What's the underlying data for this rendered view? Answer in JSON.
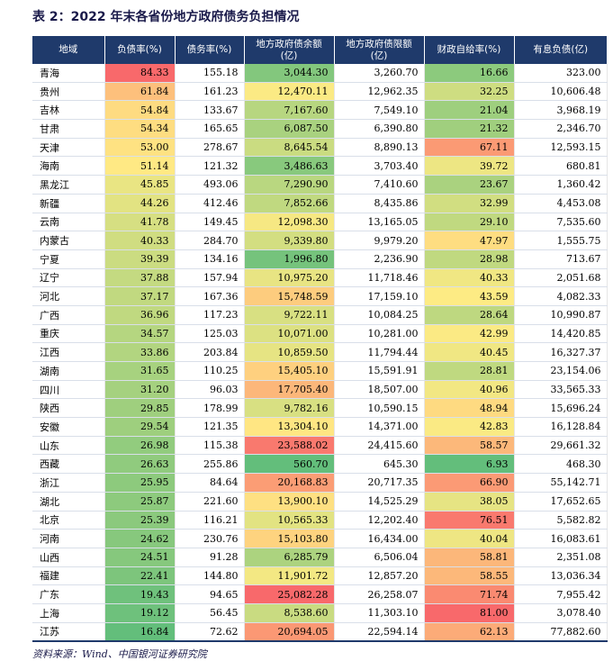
{
  "title": "表 2：2022 年末各省份地方政府债务负担情况",
  "source": "资料来源：Wind、中国银河证券研究院",
  "columns": [
    "地域",
    "负债率(%)",
    "债务率(%)",
    "地方政府债余额\n(亿)",
    "地方政府债限额\n(亿)",
    "财政自给率(%)",
    "有息负债(亿)"
  ],
  "rows": [
    {
      "region": "青海",
      "fzl": "84.33",
      "zwl": "155.18",
      "ye": "3,044.30",
      "xe": "3,260.70",
      "zjl": "16.66",
      "yx": "323.00"
    },
    {
      "region": "贵州",
      "fzl": "61.84",
      "zwl": "161.23",
      "ye": "12,470.11",
      "xe": "12,962.35",
      "zjl": "32.25",
      "yx": "10,606.48"
    },
    {
      "region": "吉林",
      "fzl": "54.84",
      "zwl": "133.67",
      "ye": "7,167.60",
      "xe": "7,549.10",
      "zjl": "21.04",
      "yx": "3,968.19"
    },
    {
      "region": "甘肃",
      "fzl": "54.34",
      "zwl": "165.65",
      "ye": "6,087.50",
      "xe": "6,390.80",
      "zjl": "21.32",
      "yx": "2,346.70"
    },
    {
      "region": "天津",
      "fzl": "53.00",
      "zwl": "278.67",
      "ye": "8,645.54",
      "xe": "8,890.13",
      "zjl": "67.11",
      "yx": "12,593.15"
    },
    {
      "region": "海南",
      "fzl": "51.14",
      "zwl": "121.32",
      "ye": "3,486.63",
      "xe": "3,703.40",
      "zjl": "39.72",
      "yx": "680.81"
    },
    {
      "region": "黑龙江",
      "fzl": "45.85",
      "zwl": "493.06",
      "ye": "7,290.90",
      "xe": "7,410.60",
      "zjl": "23.67",
      "yx": "1,360.42"
    },
    {
      "region": "新疆",
      "fzl": "44.26",
      "zwl": "412.46",
      "ye": "7,852.66",
      "xe": "8,435.86",
      "zjl": "32.99",
      "yx": "4,453.08"
    },
    {
      "region": "云南",
      "fzl": "41.78",
      "zwl": "149.45",
      "ye": "12,098.30",
      "xe": "13,165.05",
      "zjl": "29.10",
      "yx": "7,535.60"
    },
    {
      "region": "内蒙古",
      "fzl": "40.33",
      "zwl": "284.70",
      "ye": "9,339.80",
      "xe": "9,979.20",
      "zjl": "47.97",
      "yx": "1,555.75"
    },
    {
      "region": "宁夏",
      "fzl": "39.39",
      "zwl": "134.16",
      "ye": "1,996.80",
      "xe": "2,236.90",
      "zjl": "28.98",
      "yx": "713.67"
    },
    {
      "region": "辽宁",
      "fzl": "37.88",
      "zwl": "157.94",
      "ye": "10,975.20",
      "xe": "11,718.46",
      "zjl": "40.33",
      "yx": "2,051.68"
    },
    {
      "region": "河北",
      "fzl": "37.17",
      "zwl": "167.36",
      "ye": "15,748.59",
      "xe": "17,159.10",
      "zjl": "43.59",
      "yx": "4,082.33"
    },
    {
      "region": "广西",
      "fzl": "36.96",
      "zwl": "117.23",
      "ye": "9,722.11",
      "xe": "10,084.25",
      "zjl": "28.64",
      "yx": "10,990.87"
    },
    {
      "region": "重庆",
      "fzl": "34.57",
      "zwl": "125.03",
      "ye": "10,071.00",
      "xe": "10,281.00",
      "zjl": "42.99",
      "yx": "14,420.85"
    },
    {
      "region": "江西",
      "fzl": "33.86",
      "zwl": "203.84",
      "ye": "10,859.50",
      "xe": "11,794.44",
      "zjl": "40.45",
      "yx": "16,327.37"
    },
    {
      "region": "湖南",
      "fzl": "31.65",
      "zwl": "110.25",
      "ye": "15,405.10",
      "xe": "15,591.91",
      "zjl": "28.81",
      "yx": "23,154.06"
    },
    {
      "region": "四川",
      "fzl": "31.20",
      "zwl": "96.03",
      "ye": "17,705.40",
      "xe": "18,507.00",
      "zjl": "40.96",
      "yx": "33,565.33"
    },
    {
      "region": "陕西",
      "fzl": "29.85",
      "zwl": "178.99",
      "ye": "9,782.16",
      "xe": "10,590.15",
      "zjl": "48.94",
      "yx": "15,696.24"
    },
    {
      "region": "安徽",
      "fzl": "29.54",
      "zwl": "121.35",
      "ye": "13,304.10",
      "xe": "14,371.00",
      "zjl": "42.83",
      "yx": "16,128.84"
    },
    {
      "region": "山东",
      "fzl": "26.98",
      "zwl": "115.38",
      "ye": "23,588.02",
      "xe": "24,415.60",
      "zjl": "58.57",
      "yx": "29,661.32"
    },
    {
      "region": "西藏",
      "fzl": "26.63",
      "zwl": "255.86",
      "ye": "560.70",
      "xe": "645.30",
      "zjl": "6.93",
      "yx": "468.30"
    },
    {
      "region": "浙江",
      "fzl": "25.95",
      "zwl": "84.64",
      "ye": "20,168.83",
      "xe": "20,717.35",
      "zjl": "66.90",
      "yx": "55,142.71"
    },
    {
      "region": "湖北",
      "fzl": "25.87",
      "zwl": "221.60",
      "ye": "13,900.10",
      "xe": "14,525.29",
      "zjl": "38.05",
      "yx": "17,652.65"
    },
    {
      "region": "北京",
      "fzl": "25.39",
      "zwl": "116.21",
      "ye": "10,565.33",
      "xe": "12,202.40",
      "zjl": "76.51",
      "yx": "5,582.82"
    },
    {
      "region": "河南",
      "fzl": "24.62",
      "zwl": "230.76",
      "ye": "15,103.80",
      "xe": "16,434.00",
      "zjl": "40.04",
      "yx": "16,083.61"
    },
    {
      "region": "山西",
      "fzl": "24.51",
      "zwl": "91.28",
      "ye": "6,285.79",
      "xe": "6,506.04",
      "zjl": "58.81",
      "yx": "2,351.08"
    },
    {
      "region": "福建",
      "fzl": "22.41",
      "zwl": "144.80",
      "ye": "11,901.72",
      "xe": "12,857.20",
      "zjl": "58.55",
      "yx": "13,036.34"
    },
    {
      "region": "广东",
      "fzl": "19.43",
      "zwl": "94.65",
      "ye": "25,082.28",
      "xe": "26,258.07",
      "zjl": "71.74",
      "yx": "7,955.42"
    },
    {
      "region": "上海",
      "fzl": "19.12",
      "zwl": "56.45",
      "ye": "8,538.60",
      "xe": "11,303.10",
      "zjl": "81.00",
      "yx": "3,078.40"
    },
    {
      "region": "江苏",
      "fzl": "16.84",
      "zwl": "72.62",
      "ye": "20,694.05",
      "xe": "22,594.14",
      "zjl": "62.13",
      "yx": "77,882.60"
    }
  ],
  "heat_colors": {
    "low": "#63be7b",
    "mid": "#ffeb84",
    "high": "#f8696b"
  }
}
